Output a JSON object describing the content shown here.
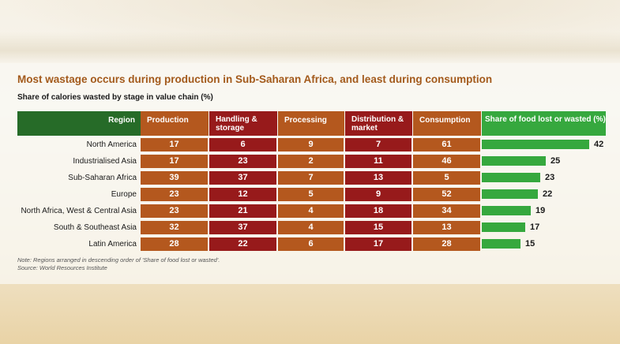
{
  "chart_data": {
    "type": "table",
    "title": "Most wastage occurs during production in Sub-Saharan Africa, and least during consumption",
    "subtitle": "Share of calories wasted by stage in value chain (%)",
    "columns": [
      {
        "label": "Region"
      },
      {
        "label": "Production",
        "color": "#b4581e"
      },
      {
        "label": "Handling & storage",
        "color": "#971a1b"
      },
      {
        "label": "Processing",
        "color": "#b4581e"
      },
      {
        "label": "Distribution & market",
        "color": "#971a1b"
      },
      {
        "label": "Consumption",
        "color": "#b4581e"
      },
      {
        "label": "Share of food lost or wasted (%)",
        "color": "#36a83e"
      }
    ],
    "rows": [
      {
        "region": "North America",
        "values": [
          17,
          6,
          9,
          7,
          61
        ],
        "share": 42
      },
      {
        "region": "Industrialised Asia",
        "values": [
          17,
          23,
          2,
          11,
          46
        ],
        "share": 25
      },
      {
        "region": "Sub-Saharan Africa",
        "values": [
          39,
          37,
          7,
          13,
          5
        ],
        "share": 23
      },
      {
        "region": "Europe",
        "values": [
          23,
          12,
          5,
          9,
          52
        ],
        "share": 22
      },
      {
        "region": "North Africa, West & Central Asia",
        "values": [
          23,
          21,
          4,
          18,
          34
        ],
        "share": 19
      },
      {
        "region": "South & Southeast Asia",
        "values": [
          32,
          37,
          4,
          15,
          13
        ],
        "share": 17
      },
      {
        "region": "Latin America",
        "values": [
          28,
          22,
          6,
          17,
          28
        ],
        "share": 15
      }
    ],
    "share_max": 42
  },
  "notes": {
    "note": "Note: Regions arranged in descending order of 'Share of food lost or wasted'.",
    "source": "Source: World Resources Institute"
  },
  "colors": {
    "region_header": "#266b28",
    "title": "#a35a1c"
  }
}
